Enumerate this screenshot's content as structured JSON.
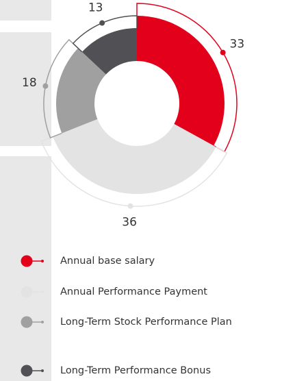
{
  "chart_data": {
    "type": "donut",
    "categories": [
      "Annual base salary",
      "Annual Performance Payment",
      "Long-Term Stock Performance Plan",
      "Long-Term Performance Bonus"
    ],
    "values": [
      33,
      36,
      18,
      13
    ],
    "colors": [
      "#e2001a",
      "#e3e3e3",
      "#a0a0a0",
      "#505055"
    ]
  }
}
